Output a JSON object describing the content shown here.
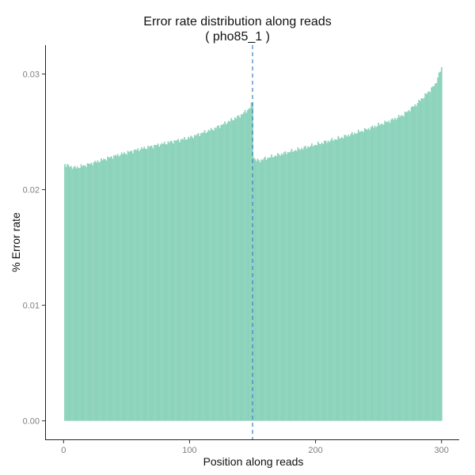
{
  "chart_data": {
    "type": "bar",
    "title": "Error rate distribution along reads",
    "subtitle": "( pho85_1 )",
    "xlabel": "Position along reads",
    "ylabel": "% Error rate",
    "xlim": [
      -14,
      314
    ],
    "ylim": [
      -0.0016,
      0.0325
    ],
    "xticks": [
      "0",
      "100",
      "200",
      "300"
    ],
    "yticks": [
      "0.00",
      "0.01",
      "0.02",
      "0.03"
    ],
    "grid": false,
    "legend": "none",
    "bar_color": "#8dd3bc",
    "vline": {
      "x": 150,
      "color": "#3a7fc1",
      "style": "dashed"
    },
    "x": [
      1,
      150,
      151,
      300
    ],
    "segments": [
      {
        "x": [
          1,
          5,
          10,
          20,
          40,
          60,
          80,
          100,
          120,
          140,
          145,
          148,
          150
        ],
        "values": [
          0.0222,
          0.022,
          0.0219,
          0.0222,
          0.0229,
          0.0235,
          0.024,
          0.0245,
          0.0253,
          0.0264,
          0.0268,
          0.0271,
          0.0276
        ]
      },
      {
        "x": [
          151,
          152,
          155,
          160,
          180,
          200,
          220,
          240,
          260,
          270,
          280,
          290,
          295,
          298,
          300
        ],
        "values": [
          0.0229,
          0.0226,
          0.0225,
          0.0227,
          0.0233,
          0.0239,
          0.0245,
          0.0252,
          0.026,
          0.0265,
          0.0274,
          0.0285,
          0.0291,
          0.03,
          0.0305
        ]
      }
    ]
  }
}
